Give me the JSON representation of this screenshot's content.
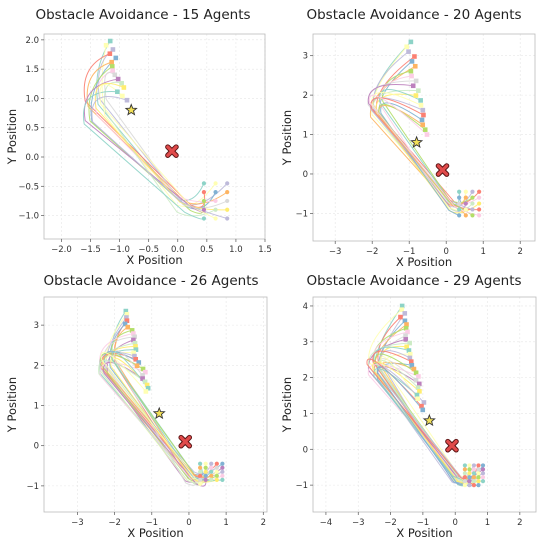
{
  "figure": {
    "colors": {
      "palette": [
        "#8dd3c7",
        "#ffffb3",
        "#bebada",
        "#fb8072",
        "#80b1d3",
        "#fdb462",
        "#b3de69",
        "#fccde5",
        "#d9d9d9",
        "#bc80bd",
        "#ccebc5",
        "#ffed6f"
      ],
      "obstacle": "#e04b4b",
      "star": "#f2e057",
      "grid": "#e6e6e6",
      "axes_edge": "#bbbbbb"
    }
  },
  "chart_data": [
    {
      "type": "line",
      "title": "Obstacle Avoidance - 15 Agents",
      "xlabel": "X Position",
      "ylabel": "Y Position",
      "xlim": [
        -2.3,
        1.5
      ],
      "ylim": [
        -1.4,
        2.1
      ],
      "xticks": [
        -2.0,
        -1.5,
        -1.0,
        -0.5,
        0.0,
        0.5,
        1.0,
        1.5
      ],
      "yticks": [
        -1.0,
        -0.5,
        0.0,
        0.5,
        1.0,
        1.5,
        2.0
      ],
      "xtick_labels": [
        "−2.0",
        "−1.5",
        "−1.0",
        "−0.5",
        "0.0",
        "0.5",
        "1.0",
        "1.5"
      ],
      "ytick_labels": [
        "−1.0",
        "−0.5",
        "0.0",
        "0.5",
        "1.0",
        "1.5",
        "2.0"
      ],
      "grid": true,
      "n_agents": 15,
      "goal_grid": {
        "x0": 0.45,
        "dx": 0.2,
        "cols": 3,
        "y0": -0.45,
        "dy": -0.15,
        "rows": 5
      },
      "start_arc": {
        "x_top": -1.2,
        "y_top": 1.98,
        "x_bot": -0.92,
        "y_bot": 0.97
      },
      "obstacle": [
        -0.1,
        0.1
      ],
      "star": [
        -0.8,
        0.8
      ],
      "path_corner_x": -1.55,
      "path_corner_y": 0.8,
      "path_end": [
        0.3,
        -0.85
      ]
    },
    {
      "type": "line",
      "title": "Obstacle Avoidance - 20 Agents",
      "xlabel": "X Position",
      "ylabel": "Y Position",
      "xlim": [
        -3.6,
        2.4
      ],
      "ylim": [
        -1.7,
        3.55
      ],
      "xticks": [
        -3,
        -2,
        -1,
        0,
        1,
        2
      ],
      "yticks": [
        -1,
        0,
        1,
        2,
        3
      ],
      "xtick_labels": [
        "−3",
        "−2",
        "−1",
        "0",
        "1",
        "2"
      ],
      "ytick_labels": [
        "−1",
        "0",
        "1",
        "2",
        "3"
      ],
      "grid": true,
      "n_agents": 20,
      "goal_grid": {
        "x0": 0.35,
        "dx": 0.18,
        "cols": 4,
        "y0": -0.45,
        "dy": -0.15,
        "rows": 5
      },
      "start_arc": {
        "x_top": -1.0,
        "y_top": 3.35,
        "x_bot": -0.6,
        "y_bot": 1.0
      },
      "obstacle": [
        -0.1,
        0.1
      ],
      "star": [
        -0.8,
        0.8
      ],
      "path_corner_x": -2.0,
      "path_corner_y": 1.6,
      "path_end": [
        0.3,
        -0.85
      ]
    },
    {
      "type": "line",
      "title": "Obstacle Avoidance - 26 Agents",
      "xlabel": "X Position",
      "ylabel": "Y Position",
      "xlim": [
        -3.9,
        2.1
      ],
      "ylim": [
        -1.65,
        3.7
      ],
      "xticks": [
        -3,
        -2,
        -1,
        0,
        1,
        2
      ],
      "yticks": [
        -1,
        0,
        1,
        2,
        3
      ],
      "xtick_labels": [
        "−3",
        "−2",
        "−1",
        "0",
        "1",
        "2"
      ],
      "ytick_labels": [
        "−1",
        "0",
        "1",
        "2",
        "3"
      ],
      "grid": true,
      "n_agents": 26,
      "goal_grid": {
        "x0": 0.3,
        "dx": 0.15,
        "cols": 5,
        "y0": -0.45,
        "dy": -0.1,
        "rows": 6
      },
      "start_arc": {
        "x_top": -1.75,
        "y_top": 3.35,
        "x_bot": -1.1,
        "y_bot": 1.35
      },
      "obstacle": [
        -0.1,
        0.1
      ],
      "star": [
        -0.8,
        0.8
      ],
      "path_corner_x": -2.3,
      "path_corner_y": 1.9,
      "path_end": [
        0.25,
        -0.85
      ]
    },
    {
      "type": "line",
      "title": "Obstacle Avoidance - 29 Agents",
      "xlabel": "X Position",
      "ylabel": "Y Position",
      "xlim": [
        -4.4,
        2.5
      ],
      "ylim": [
        -1.75,
        4.25
      ],
      "xticks": [
        -4,
        -3,
        -2,
        -1,
        0,
        1,
        2
      ],
      "yticks": [
        -1,
        0,
        1,
        2,
        3,
        4
      ],
      "xtick_labels": [
        "−4",
        "−3",
        "−2",
        "−1",
        "0",
        "1",
        "2"
      ],
      "ytick_labels": [
        "−1",
        "0",
        "1",
        "2",
        "3",
        "4"
      ],
      "grid": true,
      "n_agents": 29,
      "goal_grid": {
        "x0": 0.3,
        "dx": 0.14,
        "cols": 5,
        "y0": -0.45,
        "dy": -0.11,
        "rows": 6
      },
      "start_arc": {
        "x_top": -1.7,
        "y_top": 4.0,
        "x_bot": -1.0,
        "y_bot": 1.1
      },
      "obstacle": [
        -0.1,
        0.1
      ],
      "star": [
        -0.8,
        0.8
      ],
      "path_corner_x": -2.6,
      "path_corner_y": 2.2,
      "path_end": [
        0.25,
        -0.9
      ]
    }
  ]
}
